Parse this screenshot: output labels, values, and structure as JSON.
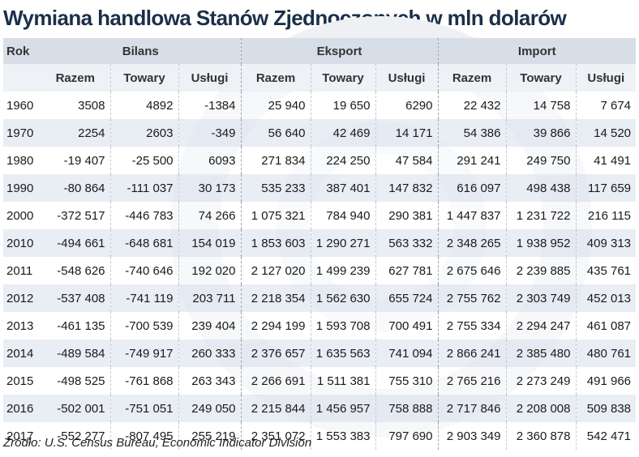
{
  "title": "Wymiana handlowa Stanów Zjednoczonych w mln dolarów",
  "headers": {
    "rok": "Rok",
    "groups": [
      "Bilans",
      "Eksport",
      "Import"
    ],
    "sub": [
      "Razem",
      "Towary",
      "Usługi"
    ]
  },
  "rows": [
    {
      "year": "1960",
      "values": [
        "3508",
        "4892",
        "-1384",
        "25 940",
        "19 650",
        "6290",
        "22 432",
        "14 758",
        "7 674"
      ]
    },
    {
      "year": "1970",
      "values": [
        "2254",
        "2603",
        "-349",
        "56 640",
        "42 469",
        "14 171",
        "54 386",
        "39 866",
        "14 520"
      ]
    },
    {
      "year": "1980",
      "values": [
        "-19 407",
        "-25 500",
        "6093",
        "271 834",
        "224 250",
        "47 584",
        "291 241",
        "249 750",
        "41 491"
      ]
    },
    {
      "year": "1990",
      "values": [
        "-80 864",
        "-111 037",
        "30 173",
        "535 233",
        "387 401",
        "147 832",
        "616 097",
        "498 438",
        "117 659"
      ]
    },
    {
      "year": "2000",
      "values": [
        "-372 517",
        "-446 783",
        "74 266",
        "1 075 321",
        "784 940",
        "290 381",
        "1 447 837",
        "1 231 722",
        "216 115"
      ]
    },
    {
      "year": "2010",
      "values": [
        "-494 661",
        "-648 681",
        "154 019",
        "1 853 603",
        "1 290 271",
        "563 332",
        "2 348 265",
        "1 938 952",
        "409 313"
      ]
    },
    {
      "year": "2011",
      "values": [
        "-548 626",
        "-740 646",
        "192 020",
        "2 127 020",
        "1 499 239",
        "627 781",
        "2 675 646",
        "2 239 885",
        "435 761"
      ]
    },
    {
      "year": "2012",
      "values": [
        "-537 408",
        "-741 119",
        "203 711",
        "2 218 354",
        "1 562 630",
        "655 724",
        "2 755 762",
        "2 303 749",
        "452 013"
      ]
    },
    {
      "year": "2013",
      "values": [
        "-461 135",
        "-700 539",
        "239 404",
        "2 294 199",
        "1 593 708",
        "700 491",
        "2 755 334",
        "2 294 247",
        "461 087"
      ]
    },
    {
      "year": "2014",
      "values": [
        "-489 584",
        "-749 917",
        "260 333",
        "2 376 657",
        "1 635 563",
        "741 094",
        "2 866 241",
        "2 385 480",
        "480 761"
      ]
    },
    {
      "year": "2015",
      "values": [
        "-498 525",
        "-761 868",
        "263 343",
        "2 266 691",
        "1 511 381",
        "755 310",
        "2 765 216",
        "2 273 249",
        "491 966"
      ]
    },
    {
      "year": "2016",
      "values": [
        "-502 001",
        "-751 051",
        "249 050",
        "2 215 844",
        "1 456 957",
        "758 888",
        "2 717 846",
        "2 208 008",
        "509 838"
      ]
    },
    {
      "year": "2017",
      "values": [
        "-552 277",
        "-807 495",
        "255 219",
        "2 351 072",
        "1 553 383",
        "797 690",
        "2 903 349",
        "2 360 878",
        "542 471"
      ]
    }
  ],
  "source": "Źródło: U.S. Census Bureau, Economic Indicator Division"
}
